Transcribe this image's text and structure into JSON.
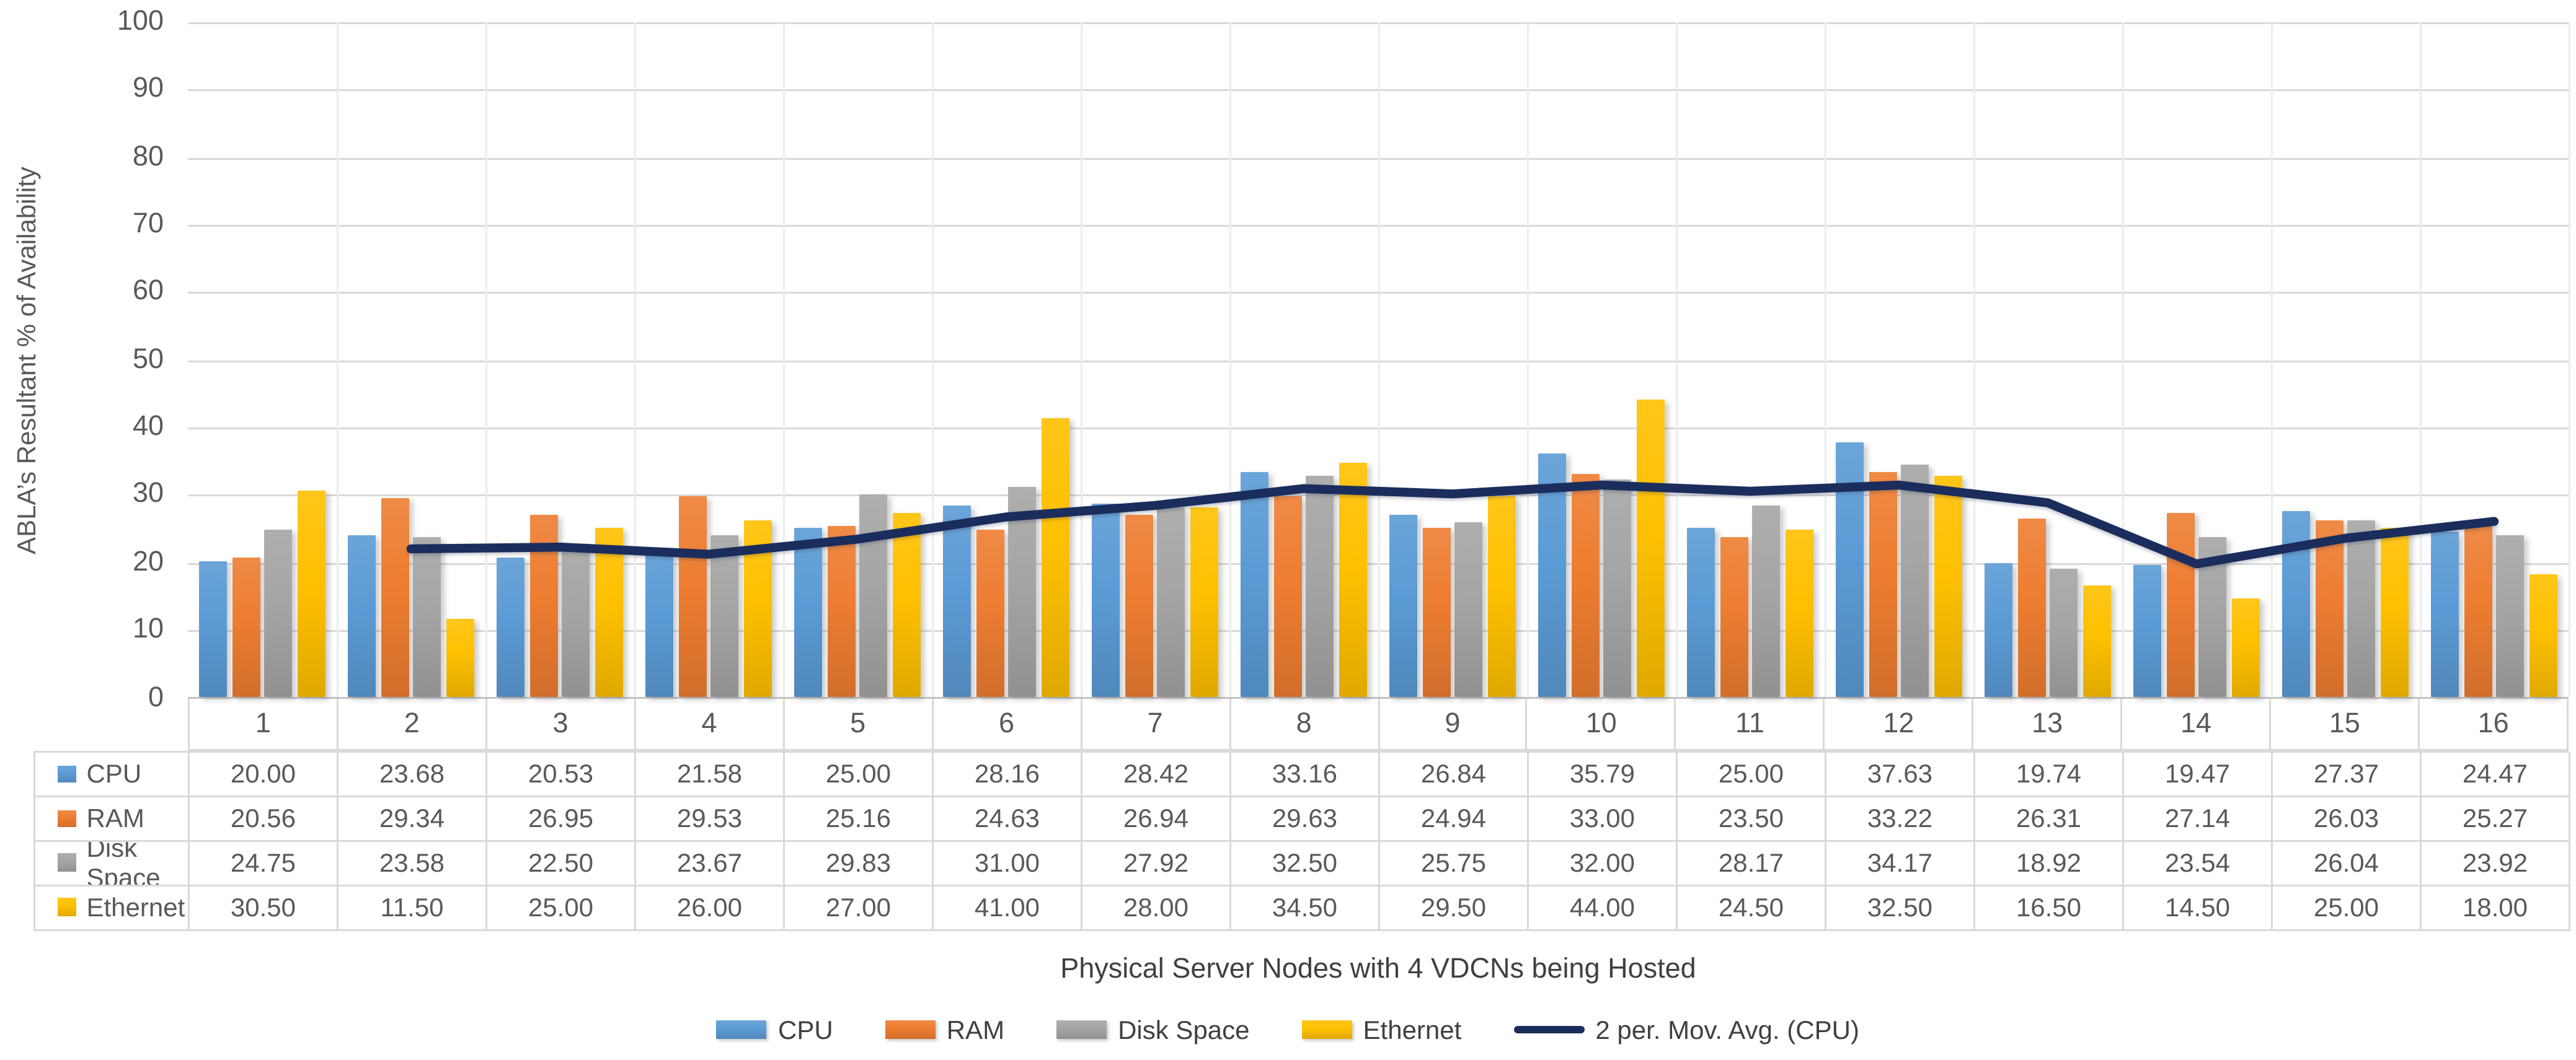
{
  "chart_data": {
    "type": "bar",
    "title": "",
    "xlabel": "Physical Server Nodes with 4 VDCNs being Hosted",
    "ylabel": "ABLA’s Resultant  % of Availability",
    "ylim": [
      0,
      100
    ],
    "ytick_step": 10,
    "grid": true,
    "legend_position": "bottom",
    "data_table_shown": true,
    "categories": [
      "1",
      "2",
      "3",
      "4",
      "5",
      "6",
      "7",
      "8",
      "9",
      "10",
      "11",
      "12",
      "13",
      "14",
      "15",
      "16"
    ],
    "series": [
      {
        "name": "CPU",
        "color": "#5B9BD5",
        "values": [
          20.0,
          23.68,
          20.53,
          21.58,
          25.0,
          28.16,
          28.42,
          33.16,
          26.84,
          35.79,
          25.0,
          37.63,
          19.74,
          19.47,
          27.37,
          24.47
        ]
      },
      {
        "name": "RAM",
        "color": "#ED7D31",
        "values": [
          20.56,
          29.34,
          26.95,
          29.53,
          25.16,
          24.63,
          26.94,
          29.63,
          24.94,
          33.0,
          23.5,
          33.22,
          26.31,
          27.14,
          26.03,
          25.27
        ]
      },
      {
        "name": "Disk Space",
        "color": "#A5A5A5",
        "values": [
          24.75,
          23.58,
          22.5,
          23.67,
          29.83,
          31.0,
          27.92,
          32.5,
          25.75,
          32.0,
          28.17,
          34.17,
          18.92,
          23.54,
          26.04,
          23.92
        ]
      },
      {
        "name": "Ethernet",
        "color": "#FFC000",
        "values": [
          30.5,
          11.5,
          25.0,
          26.0,
          27.0,
          41.0,
          28.0,
          34.5,
          29.5,
          44.0,
          24.5,
          32.5,
          16.5,
          14.5,
          25.0,
          18.0
        ]
      }
    ],
    "trendline": {
      "name": "2 per. Mov. Avg. (CPU)",
      "color": "#1A2D5C",
      "values": [
        null,
        21.84,
        22.105,
        21.055,
        23.29,
        26.58,
        28.29,
        30.79,
        30.0,
        31.315,
        30.395,
        31.315,
        28.685,
        19.605,
        23.42,
        25.92
      ]
    },
    "colors": {
      "gridline": "#D9D9D9",
      "axis_text": "#595959"
    }
  }
}
